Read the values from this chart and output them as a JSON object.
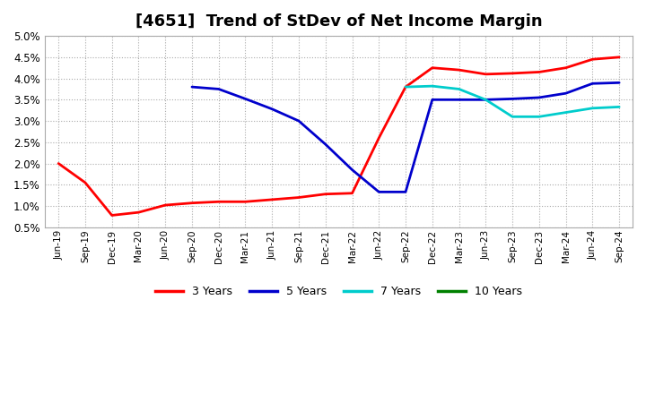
{
  "title": "[4651]  Trend of StDev of Net Income Margin",
  "x_labels": [
    "Jun-19",
    "Sep-19",
    "Dec-19",
    "Mar-20",
    "Jun-20",
    "Sep-20",
    "Dec-20",
    "Mar-21",
    "Jun-21",
    "Sep-21",
    "Dec-21",
    "Mar-22",
    "Jun-22",
    "Sep-22",
    "Dec-22",
    "Mar-23",
    "Jun-23",
    "Sep-23",
    "Dec-23",
    "Mar-24",
    "Jun-24",
    "Sep-24"
  ],
  "series_order": [
    "3 Years",
    "5 Years",
    "7 Years",
    "10 Years"
  ],
  "series": {
    "3 Years": {
      "color": "#FF0000",
      "data": [
        2.0,
        1.55,
        0.78,
        0.85,
        1.02,
        1.07,
        1.1,
        1.1,
        1.15,
        1.2,
        1.28,
        1.3,
        2.6,
        3.8,
        4.25,
        4.2,
        4.1,
        4.12,
        4.15,
        4.25,
        4.45,
        4.5
      ]
    },
    "5 Years": {
      "color": "#0000CC",
      "data": [
        null,
        null,
        null,
        null,
        null,
        3.8,
        3.75,
        3.52,
        3.28,
        3.0,
        2.45,
        1.85,
        1.33,
        1.33,
        3.5,
        3.5,
        3.5,
        3.52,
        3.55,
        3.65,
        3.88,
        3.9
      ]
    },
    "7 Years": {
      "color": "#00CCCC",
      "data": [
        null,
        null,
        null,
        null,
        null,
        null,
        null,
        null,
        null,
        null,
        null,
        null,
        null,
        3.8,
        3.82,
        3.75,
        3.5,
        3.1,
        3.1,
        3.2,
        3.3,
        3.33
      ]
    },
    "10 Years": {
      "color": "#008000",
      "data": [
        null,
        null,
        null,
        null,
        null,
        null,
        null,
        null,
        null,
        null,
        null,
        null,
        null,
        null,
        null,
        null,
        null,
        null,
        null,
        null,
        null,
        null
      ]
    }
  },
  "ylim": [
    0.5,
    5.0
  ],
  "yticks": [
    0.5,
    1.0,
    1.5,
    2.0,
    2.5,
    3.0,
    3.5,
    4.0,
    4.5,
    5.0
  ],
  "ytick_labels": [
    "0.5%",
    "1.0%",
    "1.5%",
    "2.0%",
    "2.5%",
    "3.0%",
    "3.5%",
    "4.0%",
    "4.5%",
    "5.0%"
  ],
  "background_color": "#FFFFFF",
  "plot_bg_color": "#FFFFFF",
  "grid_color": "#AAAAAA",
  "title_fontsize": 13,
  "legend_entries": [
    "3 Years",
    "5 Years",
    "7 Years",
    "10 Years"
  ],
  "legend_colors": [
    "#FF0000",
    "#0000CC",
    "#00CCCC",
    "#008000"
  ]
}
